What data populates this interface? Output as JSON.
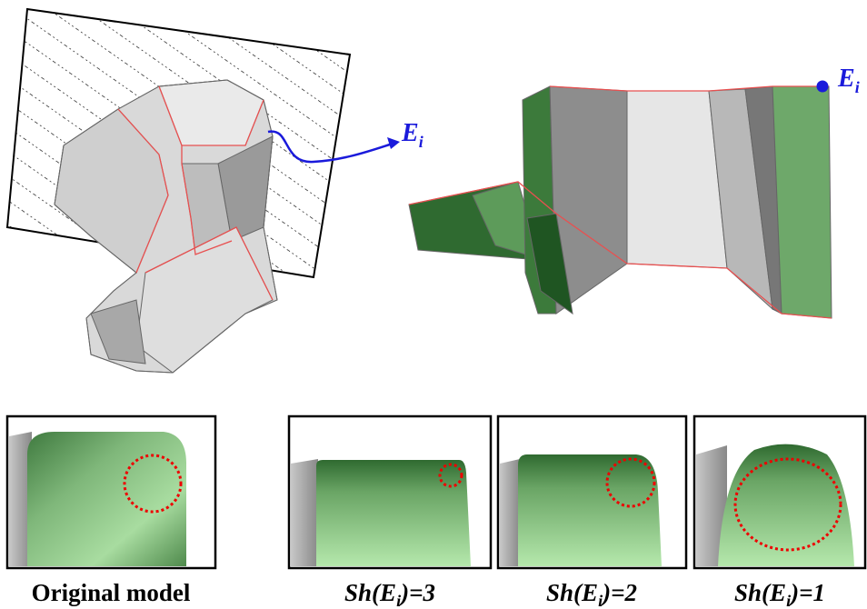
{
  "labels": [
    {
      "base": "E",
      "sub": "i"
    },
    {
      "base": "E",
      "sub": "i"
    }
  ],
  "captions": [
    {
      "text": "Original model"
    },
    {
      "prefix": "Sh(E",
      "sub": "i",
      "suffix": ")=3"
    },
    {
      "prefix": "Sh(E",
      "sub": "i",
      "suffix": ")=2"
    },
    {
      "prefix": "Sh(E",
      "sub": "i",
      "suffix": ")=1"
    }
  ]
}
